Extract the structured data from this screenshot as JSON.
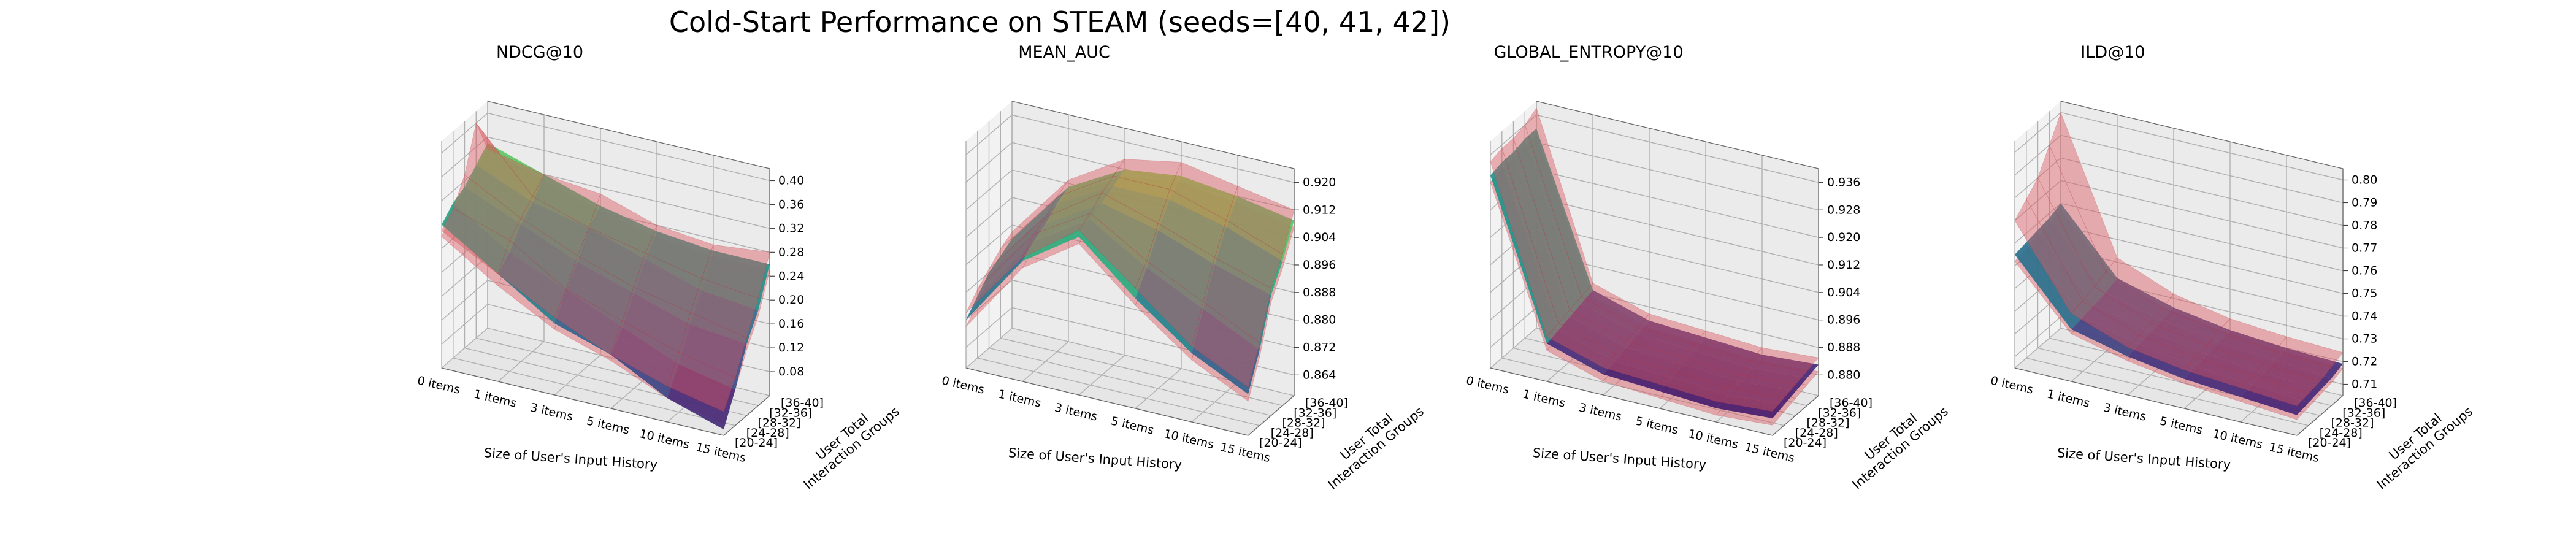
{
  "title": "Cold-Start Performance on STEAM (seeds=[40, 41, 42])",
  "chart_data": [
    {
      "type": "surface3d",
      "title": "NDCG@10",
      "xlabel": "Size of User's Input History",
      "ylabel": "User Total\nInteraction Groups",
      "x_ticks": [
        "0 items",
        "1 items",
        "3 items",
        "5 items",
        "10 items",
        "15 items"
      ],
      "y_ticks": [
        "[20-24]",
        "[24-28]",
        "[28-32]",
        "[32-36]",
        "[36-40]"
      ],
      "z_ticks": [
        "0.08",
        "0.12",
        "0.16",
        "0.20",
        "0.24",
        "0.28",
        "0.32",
        "0.36",
        "0.40"
      ],
      "zlim": [
        0.04,
        0.42
      ],
      "series": [
        {
          "values": [
            [
              0.28,
              0.22,
              0.16,
              0.13,
              0.08,
              0.05
            ],
            [
              0.3,
              0.24,
              0.2,
              0.16,
              0.12,
              0.1
            ],
            [
              0.31,
              0.27,
              0.23,
              0.2,
              0.17,
              0.16
            ],
            [
              0.33,
              0.29,
              0.27,
              0.24,
              0.21,
              0.2
            ],
            [
              0.35,
              0.32,
              0.29,
              0.27,
              0.26,
              0.26
            ]
          ]
        },
        {
          "values": [
            [
              0.26,
              0.2,
              0.15,
              0.12,
              0.08,
              0.06
            ],
            [
              0.29,
              0.23,
              0.19,
              0.15,
              0.12,
              0.1
            ],
            [
              0.3,
              0.25,
              0.22,
              0.19,
              0.17,
              0.15
            ],
            [
              0.32,
              0.28,
              0.26,
              0.23,
              0.21,
              0.19
            ],
            [
              0.34,
              0.31,
              0.28,
              0.26,
              0.25,
              0.25
            ]
          ]
        },
        {
          "values": [
            [
              0.27,
              0.22,
              0.17,
              0.13,
              0.1,
              0.08
            ],
            [
              0.29,
              0.26,
              0.2,
              0.17,
              0.14,
              0.12
            ],
            [
              0.33,
              0.28,
              0.24,
              0.21,
              0.19,
              0.17
            ],
            [
              0.4,
              0.3,
              0.27,
              0.25,
              0.23,
              0.22
            ],
            [
              0.34,
              0.32,
              0.31,
              0.28,
              0.27,
              0.28
            ]
          ]
        }
      ]
    },
    {
      "type": "surface3d",
      "title": "MEAN_AUC",
      "xlabel": "Size of User's Input History",
      "ylabel": "User Total\nInteraction Groups",
      "x_ticks": [
        "0 items",
        "1 items",
        "3 items",
        "5 items",
        "10 items",
        "15 items"
      ],
      "y_ticks": [
        "[20-24]",
        "[24-28]",
        "[28-32]",
        "[32-36]",
        "[36-40]"
      ],
      "z_ticks": [
        "0.864",
        "0.872",
        "0.880",
        "0.888",
        "0.896",
        "0.904",
        "0.912",
        "0.920"
      ],
      "zlim": [
        0.858,
        0.924
      ],
      "series": [
        {
          "values": [
            [
              0.872,
              0.893,
              0.904,
              0.89,
              0.878,
              0.87
            ],
            [
              0.876,
              0.896,
              0.906,
              0.896,
              0.888,
              0.88
            ],
            [
              0.88,
              0.898,
              0.908,
              0.904,
              0.898,
              0.893
            ],
            [
              0.882,
              0.901,
              0.91,
              0.91,
              0.906,
              0.9
            ],
            [
              0.884,
              0.903,
              0.912,
              0.914,
              0.912,
              0.909
            ]
          ]
        },
        {
          "values": [
            [
              0.87,
              0.891,
              0.902,
              0.888,
              0.876,
              0.868
            ],
            [
              0.874,
              0.894,
              0.904,
              0.894,
              0.886,
              0.878
            ],
            [
              0.878,
              0.896,
              0.906,
              0.902,
              0.896,
              0.891
            ],
            [
              0.88,
              0.899,
              0.908,
              0.908,
              0.904,
              0.898
            ],
            [
              0.882,
              0.901,
              0.91,
              0.912,
              0.91,
              0.907
            ]
          ]
        },
        {
          "values": [
            [
              0.874,
              0.894,
              0.906,
              0.893,
              0.88,
              0.872
            ],
            [
              0.878,
              0.898,
              0.908,
              0.898,
              0.89,
              0.882
            ],
            [
              0.881,
              0.9,
              0.911,
              0.906,
              0.9,
              0.895
            ],
            [
              0.884,
              0.903,
              0.913,
              0.913,
              0.908,
              0.902
            ],
            [
              0.886,
              0.905,
              0.915,
              0.918,
              0.915,
              0.912
            ]
          ]
        }
      ]
    },
    {
      "type": "surface3d",
      "title": "GLOBAL_ENTROPY@10",
      "xlabel": "Size of User's Input History",
      "ylabel": "User Total\nInteraction Groups",
      "x_ticks": [
        "0 items",
        "1 items",
        "3 items",
        "5 items",
        "10 items",
        "15 items"
      ],
      "y_ticks": [
        "[20-24]",
        "[24-28]",
        "[28-32]",
        "[32-36]",
        "[36-40]"
      ],
      "z_ticks": [
        "0.880",
        "0.888",
        "0.896",
        "0.904",
        "0.912",
        "0.920",
        "0.928",
        "0.936"
      ],
      "zlim": [
        0.874,
        0.94
      ],
      "series": [
        {
          "values": [
            [
              0.93,
              0.885,
              0.88,
              0.879,
              0.878,
              0.879
            ],
            [
              0.931,
              0.886,
              0.881,
              0.88,
              0.879,
              0.88
            ],
            [
              0.931,
              0.887,
              0.882,
              0.881,
              0.88,
              0.881
            ],
            [
              0.932,
              0.888,
              0.883,
              0.882,
              0.881,
              0.882
            ],
            [
              0.932,
              0.889,
              0.884,
              0.883,
              0.882,
              0.883
            ]
          ]
        },
        {
          "values": [
            [
              0.928,
              0.883,
              0.878,
              0.877,
              0.876,
              0.877
            ],
            [
              0.929,
              0.884,
              0.879,
              0.878,
              0.877,
              0.878
            ],
            [
              0.929,
              0.885,
              0.88,
              0.879,
              0.878,
              0.879
            ],
            [
              0.93,
              0.886,
              0.881,
              0.88,
              0.879,
              0.88
            ],
            [
              0.93,
              0.887,
              0.882,
              0.881,
              0.88,
              0.881
            ]
          ]
        },
        {
          "values": [
            [
              0.934,
              0.887,
              0.882,
              0.881,
              0.88,
              0.881
            ],
            [
              0.935,
              0.888,
              0.883,
              0.882,
              0.881,
              0.882
            ],
            [
              0.935,
              0.889,
              0.884,
              0.883,
              0.882,
              0.883
            ],
            [
              0.936,
              0.89,
              0.885,
              0.884,
              0.883,
              0.884
            ],
            [
              0.938,
              0.891,
              0.886,
              0.885,
              0.884,
              0.885
            ]
          ]
        }
      ]
    },
    {
      "type": "surface3d",
      "title": "ILD@10",
      "xlabel": "Size of User's Input History",
      "ylabel": "User Total\nInteraction Groups",
      "x_ticks": [
        "0 items",
        "1 items",
        "3 items",
        "5 items",
        "10 items",
        "15 items"
      ],
      "y_ticks": [
        "[20-24]",
        "[24-28]",
        "[28-32]",
        "[32-36]",
        "[36-40]"
      ],
      "z_ticks": [
        "0.71",
        "0.72",
        "0.73",
        "0.74",
        "0.75",
        "0.76",
        "0.77",
        "0.78",
        "0.79",
        "0.80"
      ],
      "zlim": [
        0.705,
        0.805
      ],
      "series": [
        {
          "values": [
            [
              0.755,
              0.728,
              0.722,
              0.718,
              0.716,
              0.714
            ],
            [
              0.756,
              0.729,
              0.723,
              0.719,
              0.717,
              0.715
            ],
            [
              0.757,
              0.73,
              0.724,
              0.72,
              0.718,
              0.716
            ],
            [
              0.758,
              0.731,
              0.725,
              0.721,
              0.719,
              0.717
            ],
            [
              0.76,
              0.733,
              0.726,
              0.722,
              0.72,
              0.719
            ]
          ]
        },
        {
          "values": [
            [
              0.752,
              0.726,
              0.72,
              0.716,
              0.714,
              0.712
            ],
            [
              0.753,
              0.727,
              0.721,
              0.717,
              0.715,
              0.713
            ],
            [
              0.754,
              0.728,
              0.722,
              0.718,
              0.716,
              0.714
            ],
            [
              0.755,
              0.729,
              0.723,
              0.719,
              0.717,
              0.715
            ],
            [
              0.757,
              0.731,
              0.724,
              0.72,
              0.718,
              0.717
            ]
          ]
        },
        {
          "values": [
            [
              0.77,
              0.735,
              0.726,
              0.722,
              0.72,
              0.718
            ],
            [
              0.775,
              0.736,
              0.727,
              0.723,
              0.721,
              0.719
            ],
            [
              0.78,
              0.738,
              0.728,
              0.724,
              0.722,
              0.72
            ],
            [
              0.79,
              0.74,
              0.73,
              0.726,
              0.723,
              0.722
            ],
            [
              0.8,
              0.742,
              0.732,
              0.727,
              0.725,
              0.724
            ]
          ]
        }
      ]
    }
  ],
  "colors": {
    "band": "#d9585f",
    "band_edge": "#c0303a",
    "pane_left": "#f2f2f2",
    "pane_right": "#ebebeb",
    "pane_floor": "#e6e6e6"
  }
}
